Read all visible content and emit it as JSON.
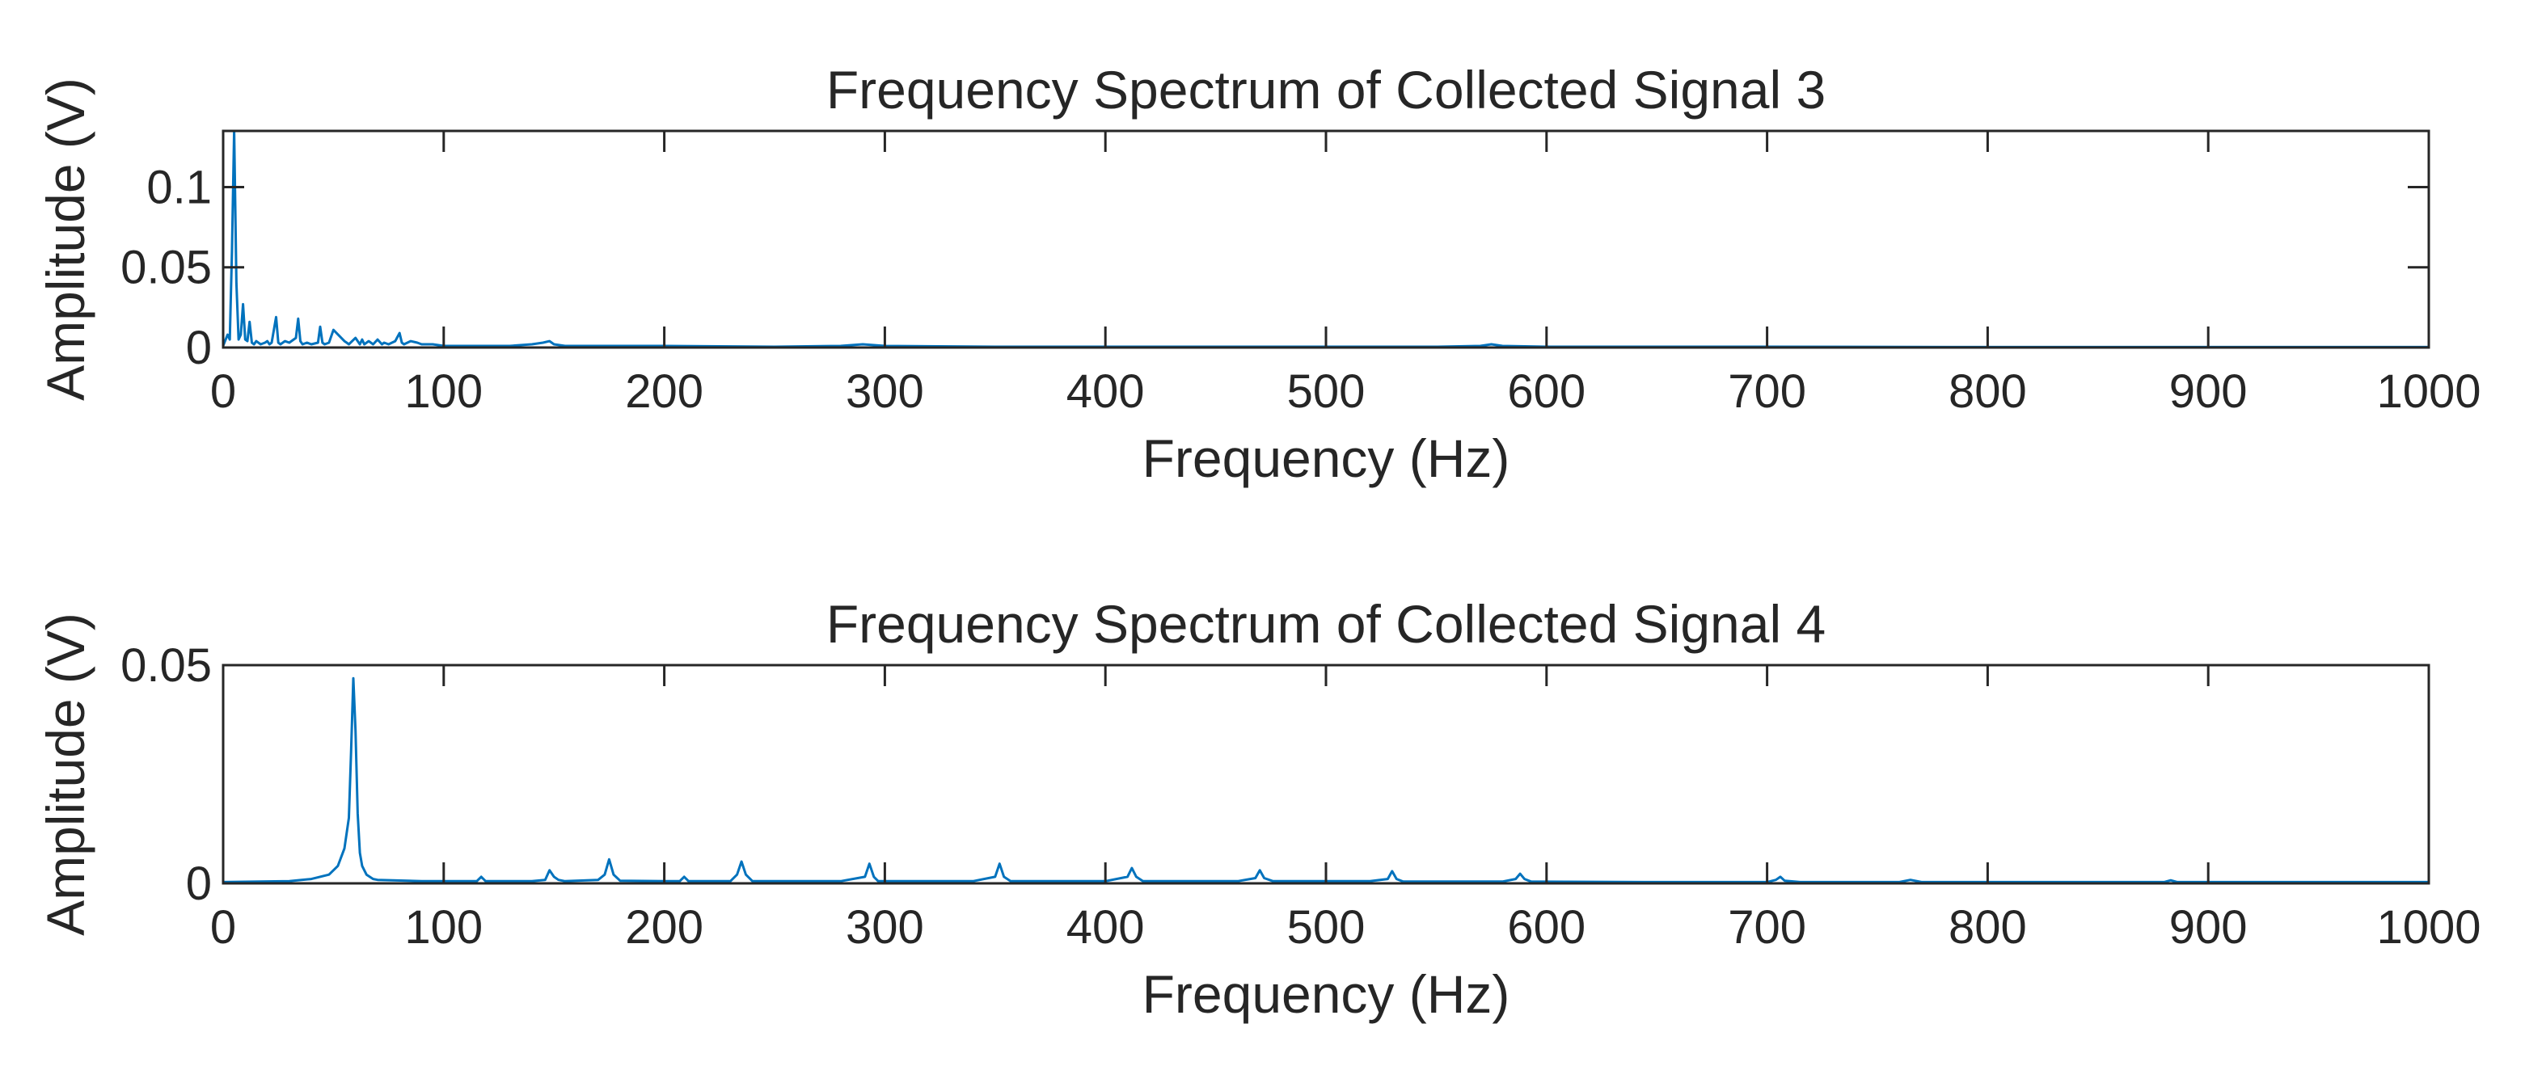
{
  "chart_data": [
    {
      "type": "line",
      "title": "Frequency Spectrum of Collected Signal 3",
      "xlabel": "Frequency (Hz)",
      "ylabel": "Amplitude (V)",
      "xlim": [
        0,
        1000
      ],
      "ylim": [
        0,
        0.135
      ],
      "xticks": [
        0,
        100,
        200,
        300,
        400,
        500,
        600,
        700,
        800,
        900,
        1000
      ],
      "yticks": [
        0,
        0.05,
        0.1
      ],
      "ytick_labels": [
        "0",
        "0.05",
        "0.1"
      ],
      "grid": false,
      "legend": "none",
      "color": "#0072BD",
      "series": [
        {
          "x": [
            0,
            2,
            3,
            4,
            5,
            6,
            7,
            8,
            9,
            10,
            11,
            12,
            13,
            14,
            15,
            17,
            19,
            20,
            21,
            22,
            24,
            25,
            26,
            28,
            30,
            33,
            34,
            35,
            36,
            38,
            40,
            43,
            44,
            45,
            46,
            48,
            50,
            55,
            56,
            57,
            60,
            62,
            63,
            64,
            66,
            68,
            70,
            72,
            73,
            75,
            78,
            80,
            81,
            82,
            85,
            88,
            90,
            95,
            100,
            110,
            120,
            130,
            140,
            145,
            148,
            150,
            155,
            160,
            170,
            200,
            250,
            280,
            290,
            300,
            350,
            400,
            450,
            500,
            550,
            570,
            575,
            580,
            600,
            700,
            800,
            900,
            1000
          ],
          "y": [
            0.001,
            0.008,
            0.005,
            0.06,
            0.135,
            0.04,
            0.005,
            0.008,
            0.027,
            0.005,
            0.004,
            0.016,
            0.003,
            0.002,
            0.004,
            0.002,
            0.003,
            0.004,
            0.002,
            0.003,
            0.019,
            0.003,
            0.002,
            0.004,
            0.003,
            0.006,
            0.018,
            0.004,
            0.002,
            0.003,
            0.002,
            0.003,
            0.013,
            0.003,
            0.002,
            0.003,
            0.011,
            0.004,
            0.003,
            0.002,
            0.006,
            0.002,
            0.005,
            0.002,
            0.004,
            0.002,
            0.005,
            0.002,
            0.003,
            0.002,
            0.004,
            0.009,
            0.003,
            0.002,
            0.004,
            0.003,
            0.002,
            0.002,
            0.001,
            0.001,
            0.001,
            0.001,
            0.002,
            0.003,
            0.004,
            0.002,
            0.001,
            0.001,
            0.001,
            0.001,
            0.0005,
            0.001,
            0.002,
            0.001,
            0.0005,
            0.0005,
            0.0005,
            0.0005,
            0.0005,
            0.001,
            0.002,
            0.001,
            0.0005,
            0.0005,
            0.0003,
            0.0003,
            0.0003
          ]
        }
      ]
    },
    {
      "type": "line",
      "title": "Frequency Spectrum of Collected Signal 4",
      "xlabel": "Frequency (Hz)",
      "ylabel": "Amplitude (V)",
      "xlim": [
        0,
        1000
      ],
      "ylim": [
        0,
        0.05
      ],
      "xticks": [
        0,
        100,
        200,
        300,
        400,
        500,
        600,
        700,
        800,
        900,
        1000
      ],
      "yticks": [
        0,
        0.05
      ],
      "ytick_labels": [
        "0",
        "0.05"
      ],
      "grid": false,
      "legend": "none",
      "color": "#0072BD",
      "series": [
        {
          "x": [
            0,
            30,
            40,
            48,
            50,
            52,
            55,
            57,
            58,
            59,
            60,
            61,
            62,
            63,
            65,
            68,
            70,
            90,
            100,
            115,
            117,
            119,
            140,
            146,
            148,
            150,
            152,
            155,
            170,
            173,
            175,
            177,
            180,
            200,
            207,
            209,
            211,
            230,
            233,
            235,
            237,
            240,
            280,
            291,
            293,
            295,
            297,
            300,
            340,
            350,
            352,
            354,
            357,
            360,
            400,
            410,
            412,
            414,
            417,
            420,
            460,
            468,
            470,
            472,
            476,
            480,
            520,
            528,
            530,
            532,
            535,
            580,
            586,
            588,
            590,
            593,
            650,
            700,
            704,
            706,
            708,
            715,
            760,
            765,
            770,
            880,
            883,
            886,
            900,
            1000
          ],
          "y": [
            0.0003,
            0.0005,
            0.001,
            0.002,
            0.003,
            0.004,
            0.008,
            0.015,
            0.03,
            0.047,
            0.035,
            0.016,
            0.007,
            0.004,
            0.002,
            0.001,
            0.0008,
            0.0005,
            0.0005,
            0.0005,
            0.0015,
            0.0005,
            0.0005,
            0.0008,
            0.003,
            0.0015,
            0.0008,
            0.0005,
            0.0008,
            0.002,
            0.0055,
            0.002,
            0.0006,
            0.0005,
            0.0005,
            0.0015,
            0.0005,
            0.0005,
            0.002,
            0.005,
            0.002,
            0.0005,
            0.0005,
            0.0015,
            0.0045,
            0.0015,
            0.0005,
            0.0005,
            0.0005,
            0.0015,
            0.0045,
            0.0015,
            0.0005,
            0.0005,
            0.0005,
            0.0015,
            0.0035,
            0.0015,
            0.0005,
            0.0005,
            0.0005,
            0.0012,
            0.003,
            0.0012,
            0.0005,
            0.0005,
            0.0005,
            0.001,
            0.0028,
            0.001,
            0.0004,
            0.0004,
            0.001,
            0.0022,
            0.001,
            0.0004,
            0.0003,
            0.0003,
            0.0008,
            0.0015,
            0.0006,
            0.0003,
            0.0003,
            0.0008,
            0.0003,
            0.0003,
            0.0007,
            0.0003,
            0.0003,
            0.0003
          ]
        }
      ]
    }
  ]
}
